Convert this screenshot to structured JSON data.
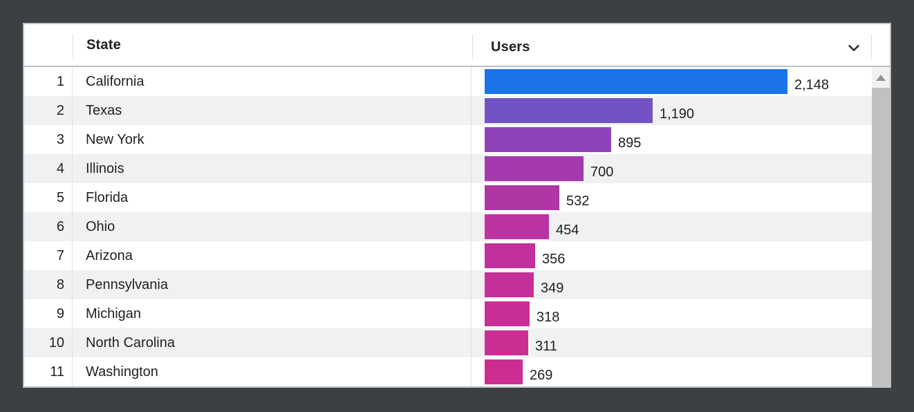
{
  "window": {
    "background_color": "#3c4043",
    "card_background": "#ffffff"
  },
  "table": {
    "columns": {
      "state": "State",
      "users": "Users"
    },
    "sort_icon": "chevron-down",
    "rows": [
      {
        "rank": "1",
        "state": "California",
        "users": "2,148",
        "value": 2148,
        "bar_color": "#1a73e8"
      },
      {
        "rank": "2",
        "state": "Texas",
        "users": "1,190",
        "value": 1190,
        "bar_color": "#7252c5"
      },
      {
        "rank": "3",
        "state": "New York",
        "users": "895",
        "value": 895,
        "bar_color": "#8f43b9"
      },
      {
        "rank": "4",
        "state": "Illinois",
        "users": "700",
        "value": 700,
        "bar_color": "#a43aad"
      },
      {
        "rank": "5",
        "state": "Florida",
        "users": "532",
        "value": 532,
        "bar_color": "#b036a5"
      },
      {
        "rank": "6",
        "state": "Ohio",
        "users": "454",
        "value": 454,
        "bar_color": "#bb32a0"
      },
      {
        "rank": "7",
        "state": "Arizona",
        "users": "356",
        "value": 356,
        "bar_color": "#c2309b"
      },
      {
        "rank": "8",
        "state": "Pennsylvania",
        "users": "349",
        "value": 349,
        "bar_color": "#c43098"
      },
      {
        "rank": "9",
        "state": "Michigan",
        "users": "318",
        "value": 318,
        "bar_color": "#c82e95"
      },
      {
        "rank": "10",
        "state": "North Carolina",
        "users": "311",
        "value": 311,
        "bar_color": "#ca2e93"
      },
      {
        "rank": "11",
        "state": "Washington",
        "users": "269",
        "value": 269,
        "bar_color": "#cd2d91"
      }
    ]
  },
  "chart_data": {
    "type": "bar",
    "orientation": "horizontal",
    "title": "",
    "xlabel": "Users",
    "ylabel": "State",
    "categories": [
      "California",
      "Texas",
      "New York",
      "Illinois",
      "Florida",
      "Ohio",
      "Arizona",
      "Pennsylvania",
      "Michigan",
      "North Carolina",
      "Washington"
    ],
    "values": [
      2148,
      1190,
      895,
      700,
      532,
      454,
      356,
      349,
      318,
      311,
      269
    ],
    "value_labels": [
      "2,148",
      "1,190",
      "895",
      "700",
      "532",
      "454",
      "356",
      "349",
      "318",
      "311",
      "269"
    ],
    "xlim": [
      0,
      2148
    ],
    "grid": false,
    "legend": false,
    "bar_colors": [
      "#1a73e8",
      "#7252c5",
      "#8f43b9",
      "#a43aad",
      "#b036a5",
      "#bb32a0",
      "#c2309b",
      "#c43098",
      "#c82e95",
      "#ca2e93",
      "#cd2d91"
    ],
    "color_scale": {
      "high": "#1a73e8",
      "low": "#cd2d91"
    }
  }
}
